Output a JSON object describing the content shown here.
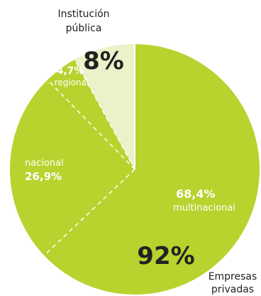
{
  "chart_data": {
    "type": "pie",
    "title": "",
    "slices": [
      {
        "label": "Empresas privadas",
        "value": 92,
        "display": "92%"
      },
      {
        "label": "Institución pública",
        "value": 8,
        "display": "8%"
      }
    ],
    "sub_slices": [
      {
        "parent": "Empresas privadas",
        "label": "multinacional",
        "value": 68.4,
        "display": "68,4%"
      },
      {
        "parent": "Empresas privadas",
        "label": "nacional",
        "value": 26.9,
        "display": "26,9%"
      },
      {
        "parent": "Empresas privadas",
        "label": "regional",
        "value": 4.7,
        "display": "4,7%"
      }
    ],
    "annotations": {
      "inst_line1": "Institución",
      "inst_line2": "pública",
      "emp_line1": "Empresas",
      "emp_line2": "privadas"
    },
    "colors": {
      "main": "#b7d32e",
      "minor": "#e9f2c9",
      "divider": "#ffffff",
      "text_dark": "#222222",
      "text_light": "#ffffff"
    }
  }
}
